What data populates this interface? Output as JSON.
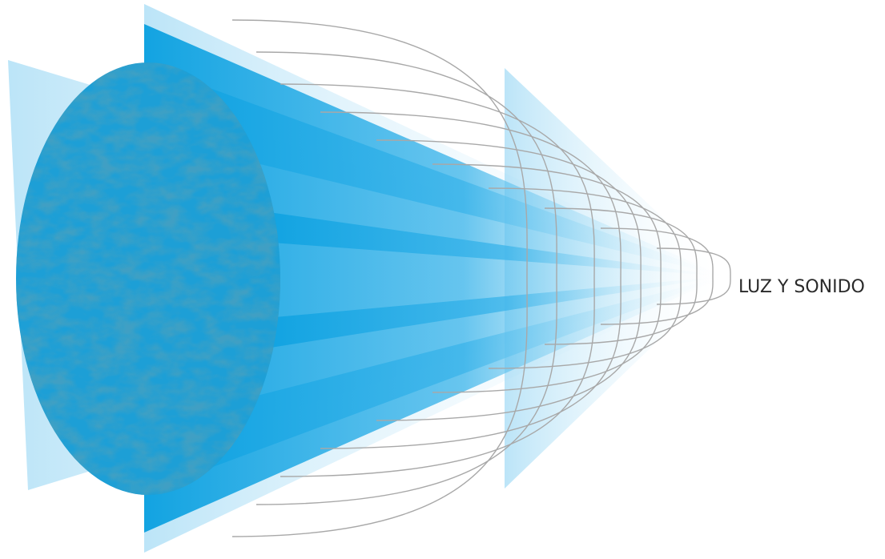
{
  "label": "LUZ Y SONIDO"
}
